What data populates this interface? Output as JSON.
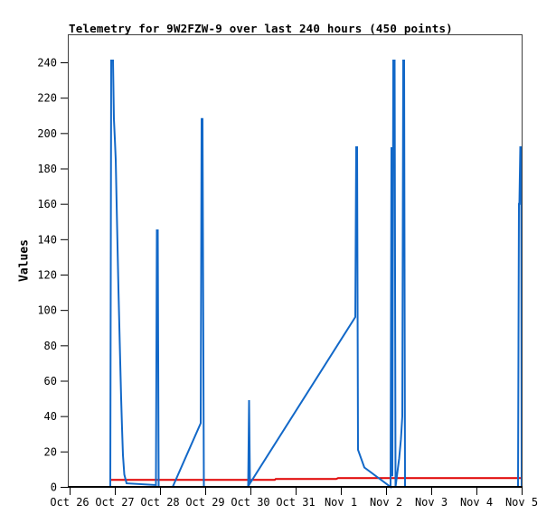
{
  "colors": {
    "background": "#ffffff",
    "frame": "#3f3f3f",
    "axis": "#000000",
    "title_text": "#000000",
    "series_blue": "#1268c8",
    "series_red": "#e00000"
  },
  "chart_data": {
    "type": "line",
    "title": "Telemetry for 9W2FZW-9 over last 240 hours (450 points)",
    "xlabel": "",
    "ylabel": "Values",
    "ylim": [
      0,
      240
    ],
    "yticks": [
      0,
      20,
      40,
      60,
      80,
      100,
      120,
      140,
      160,
      180,
      200,
      220,
      240
    ],
    "xtick_labels": [
      "Oct 26",
      "Oct 27",
      "Oct 28",
      "Oct 29",
      "Oct 30",
      "Oct 31",
      "Nov 1",
      "Nov 2",
      "Nov 3",
      "Nov 4",
      "Nov 5"
    ],
    "x_unit": "days since Oct 26 tick; 1 tick = 1 day; full span = 240 hours",
    "grid": false,
    "legend_position": "none",
    "series": [
      {
        "name": "channel-blue",
        "color": "#1268c8",
        "style": "line",
        "points": [
          [
            0.9,
            0
          ],
          [
            0.92,
            241
          ],
          [
            0.96,
            241
          ],
          [
            0.98,
            208
          ],
          [
            1.0,
            197
          ],
          [
            1.02,
            185
          ],
          [
            1.04,
            160
          ],
          [
            1.06,
            136
          ],
          [
            1.08,
            112
          ],
          [
            1.1,
            91
          ],
          [
            1.12,
            70
          ],
          [
            1.14,
            50
          ],
          [
            1.16,
            33
          ],
          [
            1.18,
            18
          ],
          [
            1.21,
            7
          ],
          [
            1.26,
            2
          ],
          [
            1.91,
            1
          ],
          [
            1.93,
            145
          ],
          [
            1.95,
            145
          ],
          [
            1.97,
            0
          ],
          [
            2.28,
            0
          ],
          [
            2.9,
            36
          ],
          [
            2.92,
            208
          ],
          [
            2.94,
            208
          ],
          [
            2.97,
            0
          ],
          [
            3.95,
            0
          ],
          [
            3.97,
            49
          ],
          [
            3.99,
            2
          ],
          [
            6.32,
            96
          ],
          [
            6.34,
            192
          ],
          [
            6.36,
            192
          ],
          [
            6.38,
            21
          ],
          [
            6.52,
            11
          ],
          [
            7.1,
            0
          ],
          [
            7.12,
            192
          ],
          [
            7.14,
            6
          ],
          [
            7.16,
            241
          ],
          [
            7.19,
            241
          ],
          [
            7.21,
            0
          ],
          [
            7.25,
            8
          ],
          [
            7.29,
            16
          ],
          [
            7.33,
            27
          ],
          [
            7.36,
            40
          ],
          [
            7.38,
            241
          ],
          [
            7.4,
            241
          ],
          [
            7.42,
            0
          ],
          [
            9.92,
            0
          ],
          [
            9.94,
            160
          ],
          [
            9.95,
            160
          ],
          [
            9.97,
            192
          ],
          [
            9.99,
            192
          ],
          [
            10.0,
            0
          ]
        ]
      },
      {
        "name": "channel-red",
        "color": "#e00000",
        "style": "line",
        "points": [
          [
            0.92,
            4
          ],
          [
            4.54,
            4
          ],
          [
            4.56,
            4.5
          ],
          [
            5.9,
            4.5
          ],
          [
            5.94,
            5
          ],
          [
            10.0,
            5
          ]
        ]
      }
    ]
  }
}
